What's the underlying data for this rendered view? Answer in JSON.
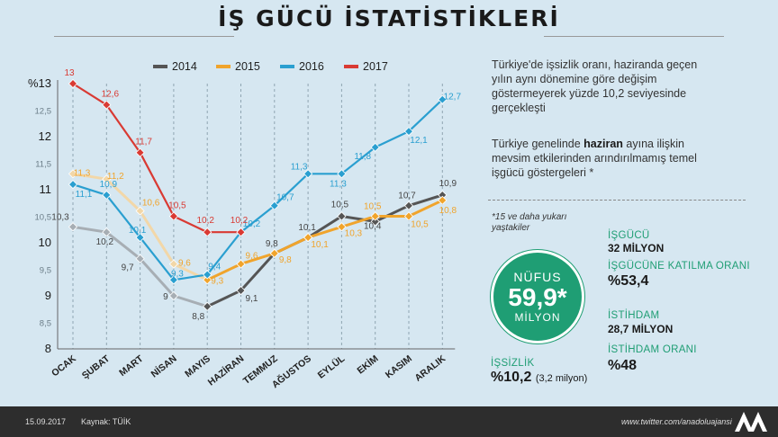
{
  "title": "İŞ GÜCÜ İSTATİSTİKLERİ",
  "chart_data": {
    "type": "line",
    "categories": [
      "OCAK",
      "ŞUBAT",
      "MART",
      "NİSAN",
      "MAYIS",
      "HAZİRAN",
      "TEMMUZ",
      "AĞUSTOS",
      "EYLÜL",
      "EKİM",
      "KASIM",
      "ARALIK"
    ],
    "series": [
      {
        "name": "2014",
        "color": "#555555",
        "fade": "#a7aeb4",
        "values": [
          10.3,
          10.2,
          9.7,
          9.0,
          8.8,
          9.1,
          9.8,
          10.1,
          10.5,
          10.4,
          10.7,
          10.9
        ],
        "labels": [
          "10,3",
          "10,2",
          "9,7",
          "9",
          "8,8",
          "9,1",
          "9,8",
          "10,1",
          "10,5",
          "10,4",
          "10,7",
          "10,9"
        ]
      },
      {
        "name": "2015",
        "color": "#f0a42c",
        "fade": "#f2d7a8",
        "values": [
          11.3,
          11.2,
          10.6,
          9.6,
          9.3,
          9.6,
          9.8,
          10.1,
          10.3,
          10.5,
          10.5,
          10.8
        ],
        "labels": [
          "11,3",
          "11,2",
          "10,6",
          "9,6",
          "9,3",
          "9,6",
          "9,8",
          "10,1",
          "10,3",
          "10,5",
          "10,5",
          "10,8"
        ]
      },
      {
        "name": "2016",
        "color": "#2a9fd0",
        "fade": "#2a9fd0",
        "values": [
          11.1,
          10.9,
          10.1,
          9.3,
          9.4,
          10.2,
          10.7,
          11.3,
          11.3,
          11.8,
          12.1,
          12.7
        ],
        "labels": [
          "11,1",
          "10,9",
          "10,1",
          "9,3",
          "9,4",
          "10,2",
          "10,7",
          "11,3",
          "11,3",
          "11,8",
          "12,1",
          "12,7"
        ]
      },
      {
        "name": "2017",
        "color": "#d93a33",
        "fade": "#d93a33",
        "values": [
          13.0,
          12.6,
          11.7,
          10.5,
          10.2,
          10.2,
          null,
          null,
          null,
          null,
          null,
          null
        ],
        "labels": [
          "13",
          "12,6",
          "11,7",
          "10,5",
          "10,2",
          "10,2"
        ]
      }
    ],
    "ylim": [
      8,
      13
    ],
    "yticks": [
      {
        "v": 13,
        "label": "%13"
      },
      {
        "v": 12.5,
        "label": "12,5"
      },
      {
        "v": 12,
        "label": "12"
      },
      {
        "v": 11.5,
        "label": "11,5"
      },
      {
        "v": 11,
        "label": "11"
      },
      {
        "v": 10.5,
        "label": "10,5"
      },
      {
        "v": 10,
        "label": "10"
      },
      {
        "v": 9.5,
        "label": "9,5"
      },
      {
        "v": 9,
        "label": "9"
      },
      {
        "v": 8.5,
        "label": "8,5"
      },
      {
        "v": 8,
        "label": "8"
      }
    ],
    "legend_position": "top"
  },
  "side": {
    "p1": "Türkiye'de işsizlik oranı, haziranda geçen yılın aynı dönemine göre değişim göstermeyerek yüzde 10,2 seviyesinde gerçekleşti",
    "p2_a": "Türkiye genelinde ",
    "p2_b": "haziran",
    "p2_c": " ayına ilişkin mevsim etkilerinden arındırılmamış temel işgücü göstergeleri *",
    "note": "*15 ve daha yukarı yaştakiler",
    "nufus_label": "NÜFUS",
    "nufus_value": "59,9*",
    "nufus_unit": "MİLYON",
    "isgucu_label": "İŞGÜCÜ",
    "isgucu_value": "32 MİLYON",
    "katilma_label": "İŞGÜCÜNE KATILMA ORANI",
    "katilma_value": "%53,4",
    "istihdam_label": "İSTİHDAM",
    "istihdam_value": "28,7 MİLYON",
    "istihdam_orani_label": "İSTİHDAM ORANI",
    "istihdam_orani_value": "%48",
    "issizlik_label": "İŞSİZLİK",
    "issizlik_value": "%10,2",
    "issizlik_sub": "(3,2 milyon)"
  },
  "footer": {
    "date": "15.09.2017",
    "source": "Kaynak: TÜİK",
    "url": "www.twitter.com/anadoluajansi"
  }
}
